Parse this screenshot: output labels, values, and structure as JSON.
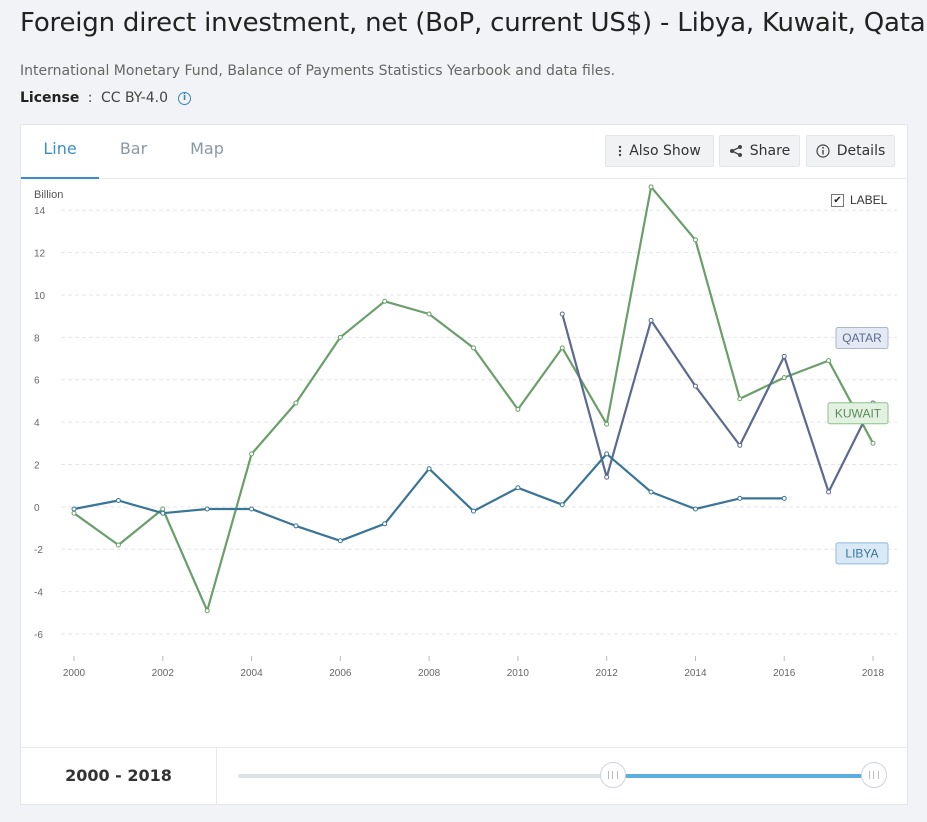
{
  "page": {
    "title": "Foreign direct investment, net (BoP, current US$) - Libya, Kuwait, Qatar",
    "source": "International Monetary Fund, Balance of Payments Statistics Yearbook and data files.",
    "license_label": "License",
    "license_sep": " : ",
    "license_value": "CC BY-4.0"
  },
  "tabs": [
    {
      "label": "Line",
      "active": true
    },
    {
      "label": "Bar",
      "active": false
    },
    {
      "label": "Map",
      "active": false
    }
  ],
  "toolbar": {
    "also_show": "Also Show",
    "share": "Share",
    "details": "Details"
  },
  "label_toggle": {
    "text": "LABEL",
    "checked": true,
    "check_glyph": "✔"
  },
  "range": {
    "label": "2000 - 2018",
    "start_fraction": 0.59,
    "end_fraction": 1.0
  },
  "colors": {
    "libya": "#3a7597",
    "kuwait": "#6a9f6a",
    "qatar": "#5b6a8e",
    "accent": "#3a8fc4"
  },
  "chart_data": {
    "type": "line",
    "ylabel": "Billion",
    "ylim": [
      -6,
      15
    ],
    "xlim": [
      2000,
      2018
    ],
    "yticks": [
      "-6",
      "-4",
      "-2",
      "0",
      "2",
      "4",
      "6",
      "8",
      "10",
      "12",
      "14"
    ],
    "xticks": [
      "2000",
      "2002",
      "2004",
      "2006",
      "2008",
      "2010",
      "2012",
      "2014",
      "2016",
      "2018"
    ],
    "grid": true,
    "series": [
      {
        "name": "KUWAIT",
        "color": "#6a9f6a",
        "label_fill": "#e3f1e1",
        "label_stroke": "#8cc28a",
        "label_text": "#5c8a5c",
        "x": [
          2000,
          2001,
          2002,
          2003,
          2004,
          2005,
          2006,
          2007,
          2008,
          2009,
          2010,
          2011,
          2012,
          2013,
          2014,
          2015,
          2016,
          2017,
          2018
        ],
        "values": [
          -0.3,
          -1.8,
          -0.1,
          -4.9,
          2.5,
          4.9,
          8.0,
          9.7,
          9.1,
          7.5,
          4.6,
          7.5,
          3.9,
          15.1,
          12.6,
          5.1,
          6.1,
          6.9,
          3.0
        ]
      },
      {
        "name": "QATAR",
        "color": "#5b6a8e",
        "label_fill": "#e4e9f3",
        "label_stroke": "#a9b6d0",
        "label_text": "#5b6a8e",
        "x": [
          2011,
          2012,
          2013,
          2014,
          2015,
          2016,
          2017,
          2018
        ],
        "values": [
          9.1,
          1.4,
          8.8,
          5.7,
          2.9,
          7.1,
          0.7,
          4.9
        ]
      },
      {
        "name": "LIBYA",
        "color": "#3a7597",
        "label_fill": "#d9eaf6",
        "label_stroke": "#8fbadb",
        "label_text": "#3a7597",
        "x": [
          2000,
          2001,
          2002,
          2003,
          2004,
          2005,
          2006,
          2007,
          2008,
          2009,
          2010,
          2011,
          2012,
          2013,
          2014,
          2015,
          2016
        ],
        "values": [
          -0.1,
          0.3,
          -0.3,
          -0.1,
          -0.1,
          -0.9,
          -1.6,
          -0.8,
          1.8,
          -0.2,
          0.9,
          0.1,
          2.5,
          0.7,
          -0.1,
          0.4,
          0.4
        ]
      }
    ]
  }
}
